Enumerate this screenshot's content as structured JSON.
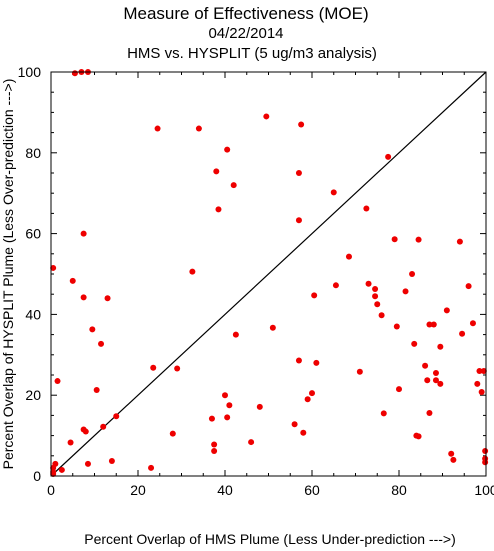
{
  "chart_data": {
    "type": "scatter",
    "title": "Measure of Effectiveness (MOE)",
    "subtitle_date": "04/22/2014",
    "subtitle": "HMS vs. HYSPLIT  (5 ug/m3 analysis)",
    "xlabel": "Percent Overlap of HMS Plume (Less Under-prediction --->)",
    "ylabel": "Percent Overlap of HYSPLIT Plume (Less Over-prediction --->)",
    "xlim": [
      0,
      100
    ],
    "ylim": [
      0,
      100
    ],
    "xticks": [
      "0",
      "20",
      "40",
      "60",
      "80",
      "100"
    ],
    "yticks": [
      "0",
      "20",
      "40",
      "60",
      "80",
      "100"
    ],
    "reference_line": {
      "x": [
        0,
        100
      ],
      "y": [
        0,
        100
      ],
      "color": "#000000"
    },
    "point_color": "#ee0000",
    "points": [
      [
        0.5,
        0.5
      ],
      [
        0.5,
        2
      ],
      [
        1,
        3
      ],
      [
        0.5,
        1
      ],
      [
        2.5,
        1.5
      ],
      [
        0.5,
        51.5
      ],
      [
        1.5,
        23.5
      ],
      [
        5.5,
        99.7
      ],
      [
        7,
        100
      ],
      [
        8.5,
        100
      ],
      [
        5,
        48.3
      ],
      [
        4.5,
        8.3
      ],
      [
        7.5,
        60
      ],
      [
        7.5,
        44.2
      ],
      [
        7.5,
        11.5
      ],
      [
        8,
        11
      ],
      [
        8.5,
        3
      ],
      [
        9.5,
        36.3
      ],
      [
        10.5,
        21.3
      ],
      [
        11.5,
        32.7
      ],
      [
        12,
        12.2
      ],
      [
        13,
        44
      ],
      [
        14,
        3.7
      ],
      [
        15,
        14.8
      ],
      [
        23,
        2
      ],
      [
        23.5,
        26.8
      ],
      [
        24.5,
        86
      ],
      [
        28,
        10.5
      ],
      [
        29,
        26.6
      ],
      [
        32.5,
        50.6
      ],
      [
        34,
        86
      ],
      [
        37,
        14.2
      ],
      [
        37.5,
        7.8
      ],
      [
        37.5,
        6.2
      ],
      [
        38,
        75.4
      ],
      [
        38.5,
        66
      ],
      [
        40,
        20
      ],
      [
        40.5,
        80.8
      ],
      [
        40.5,
        14.5
      ],
      [
        41,
        17.5
      ],
      [
        42,
        72
      ],
      [
        42.5,
        35
      ],
      [
        46,
        8.4
      ],
      [
        48,
        17.1
      ],
      [
        49.5,
        89
      ],
      [
        51,
        36.7
      ],
      [
        56,
        12.8
      ],
      [
        57,
        28.6
      ],
      [
        57,
        75
      ],
      [
        57,
        63.3
      ],
      [
        57.5,
        87
      ],
      [
        58,
        10.7
      ],
      [
        59,
        19
      ],
      [
        60,
        20.5
      ],
      [
        60.5,
        44.7
      ],
      [
        61,
        28
      ],
      [
        65,
        70.2
      ],
      [
        65.5,
        47.2
      ],
      [
        68.5,
        54.3
      ],
      [
        71,
        25.8
      ],
      [
        72.5,
        66.2
      ],
      [
        73,
        47.6
      ],
      [
        74.5,
        46.3
      ],
      [
        74.5,
        44.5
      ],
      [
        75,
        42.5
      ],
      [
        76,
        39.8
      ],
      [
        76.5,
        15.5
      ],
      [
        77.5,
        79
      ],
      [
        79,
        58.6
      ],
      [
        79.5,
        37
      ],
      [
        80,
        21.5
      ],
      [
        81.5,
        45.7
      ],
      [
        83,
        50
      ],
      [
        83.5,
        32.7
      ],
      [
        84,
        10
      ],
      [
        84.5,
        9.8
      ],
      [
        84.5,
        58.5
      ],
      [
        86,
        27.3
      ],
      [
        86.5,
        23.7
      ],
      [
        87,
        15.6
      ],
      [
        87,
        37.5
      ],
      [
        88,
        37.5
      ],
      [
        88.5,
        25.5
      ],
      [
        88.5,
        23.7
      ],
      [
        89.5,
        22.8
      ],
      [
        89.5,
        32
      ],
      [
        91,
        41
      ],
      [
        92,
        5.5
      ],
      [
        92.5,
        4
      ],
      [
        94,
        58
      ],
      [
        94.5,
        35.2
      ],
      [
        96,
        47
      ],
      [
        97,
        37.8
      ],
      [
        98,
        22.8
      ],
      [
        98.5,
        26
      ],
      [
        99,
        20.8
      ],
      [
        99.5,
        26
      ],
      [
        99.8,
        6.2
      ],
      [
        99.8,
        4.3
      ],
      [
        99.8,
        3.4
      ]
    ]
  }
}
